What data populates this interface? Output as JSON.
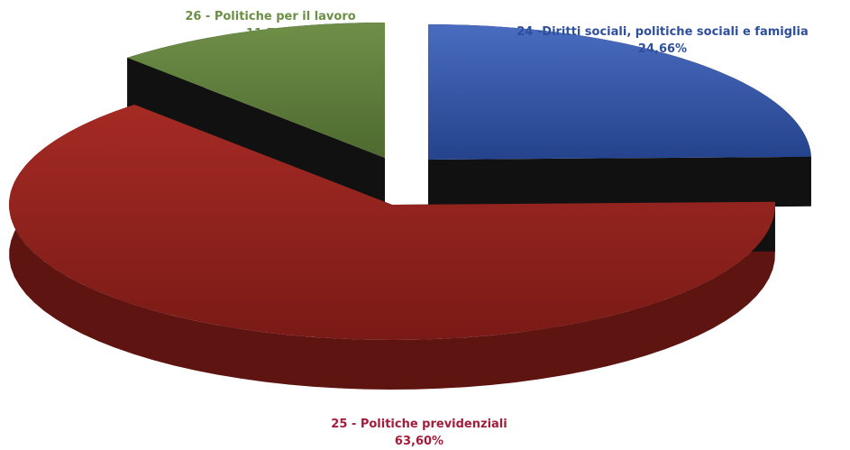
{
  "chart_data": {
    "type": "pie",
    "title": "",
    "three_d": true,
    "exploded": true,
    "series": [
      {
        "values": [
          {
            "label": "24 -Diritti sociali, politiche sociali e famiglia",
            "value": 24.66,
            "value_label": "24,66%",
            "color": "#2e4f9c",
            "label_color": "#2e4f9c"
          },
          {
            "label": "25 - Politiche previdenziali",
            "value": 63.6,
            "value_label": "63,60%",
            "color": "#8e1f1f",
            "label_color": "#a31c3a"
          },
          {
            "label": "26 - Politiche per il lavoro",
            "value": 11.74,
            "value_label": "11,74%",
            "color": "#5b7a3a",
            "label_color": "#6a8f45"
          }
        ]
      }
    ],
    "legend": "none",
    "labels_position": "outside"
  }
}
